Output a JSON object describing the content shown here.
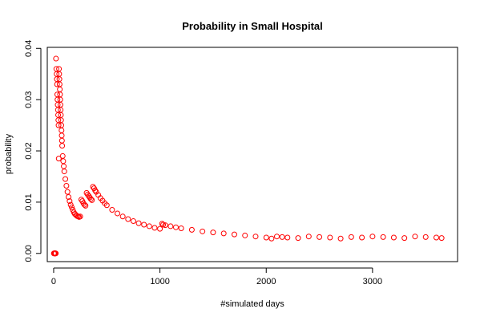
{
  "chart_data": {
    "type": "scatter",
    "title": "Probability in Small Hospital",
    "xlabel": "#simulated days",
    "ylabel": "probability",
    "xlim": [
      -60,
      3800
    ],
    "ylim": [
      -0.0016,
      0.0402
    ],
    "x_ticks": [
      0,
      1000,
      2000,
      3000
    ],
    "x_tick_labels": [
      "0",
      "1000",
      "2000",
      "3000"
    ],
    "y_ticks": [
      0.0,
      0.01,
      0.02,
      0.03,
      0.04
    ],
    "y_tick_labels": [
      "0.00",
      "0.01",
      "0.02",
      "0.03",
      "0.04"
    ],
    "grid": false,
    "marker": "open-circle",
    "series": [
      {
        "color": "#ff0000",
        "x": [
          2,
          5,
          8,
          10,
          12,
          15,
          18,
          20,
          22,
          25,
          28,
          30,
          32,
          34,
          36,
          38,
          40,
          42,
          44,
          46,
          48,
          50,
          52,
          54,
          56,
          58,
          60,
          62,
          64,
          66,
          68,
          70,
          72,
          74,
          76,
          78,
          80,
          85,
          90,
          95,
          100,
          110,
          120,
          130,
          140,
          150,
          160,
          170,
          180,
          190,
          200,
          210,
          220,
          230,
          240,
          250,
          260,
          270,
          280,
          290,
          300,
          310,
          320,
          330,
          340,
          350,
          360,
          370,
          380,
          390,
          400,
          420,
          440,
          460,
          480,
          500,
          550,
          600,
          650,
          700,
          750,
          800,
          850,
          900,
          950,
          1000,
          1020,
          1030,
          1050,
          1100,
          1150,
          1200,
          1300,
          1400,
          1500,
          1600,
          1700,
          1800,
          1900,
          2000,
          2050,
          2100,
          2150,
          2200,
          2300,
          2400,
          2500,
          2600,
          2700,
          2800,
          2900,
          3000,
          3100,
          3200,
          3300,
          3400,
          3500,
          3600,
          3650
        ],
        "y": [
          0.0,
          0.0,
          0.0,
          0.0,
          0.0,
          0.0,
          0.0,
          0.0,
          0.038,
          0.036,
          0.035,
          0.034,
          0.033,
          0.031,
          0.03,
          0.029,
          0.028,
          0.027,
          0.026,
          0.025,
          0.0185,
          0.036,
          0.035,
          0.034,
          0.033,
          0.032,
          0.031,
          0.03,
          0.029,
          0.028,
          0.027,
          0.026,
          0.025,
          0.024,
          0.023,
          0.022,
          0.021,
          0.019,
          0.018,
          0.017,
          0.016,
          0.0145,
          0.0132,
          0.012,
          0.011,
          0.0102,
          0.0095,
          0.009,
          0.0085,
          0.008,
          0.0077,
          0.0075,
          0.0073,
          0.0072,
          0.0071,
          0.0072,
          0.0105,
          0.0102,
          0.0098,
          0.0095,
          0.0093,
          0.0118,
          0.0115,
          0.0112,
          0.0109,
          0.0106,
          0.0104,
          0.013,
          0.0127,
          0.0123,
          0.012,
          0.0114,
          0.0108,
          0.0103,
          0.0098,
          0.0094,
          0.0085,
          0.0078,
          0.0072,
          0.0067,
          0.0063,
          0.0059,
          0.0056,
          0.0053,
          0.005,
          0.0048,
          0.0058,
          0.0056,
          0.0055,
          0.0053,
          0.0051,
          0.0049,
          0.0046,
          0.0043,
          0.0041,
          0.0039,
          0.0037,
          0.0035,
          0.0033,
          0.0031,
          0.0029,
          0.0033,
          0.0032,
          0.0031,
          0.003,
          0.0033,
          0.0032,
          0.0031,
          0.0029,
          0.0032,
          0.0031,
          0.0033,
          0.0032,
          0.0031,
          0.003,
          0.0033,
          0.0032,
          0.0031,
          0.003
        ]
      }
    ]
  }
}
